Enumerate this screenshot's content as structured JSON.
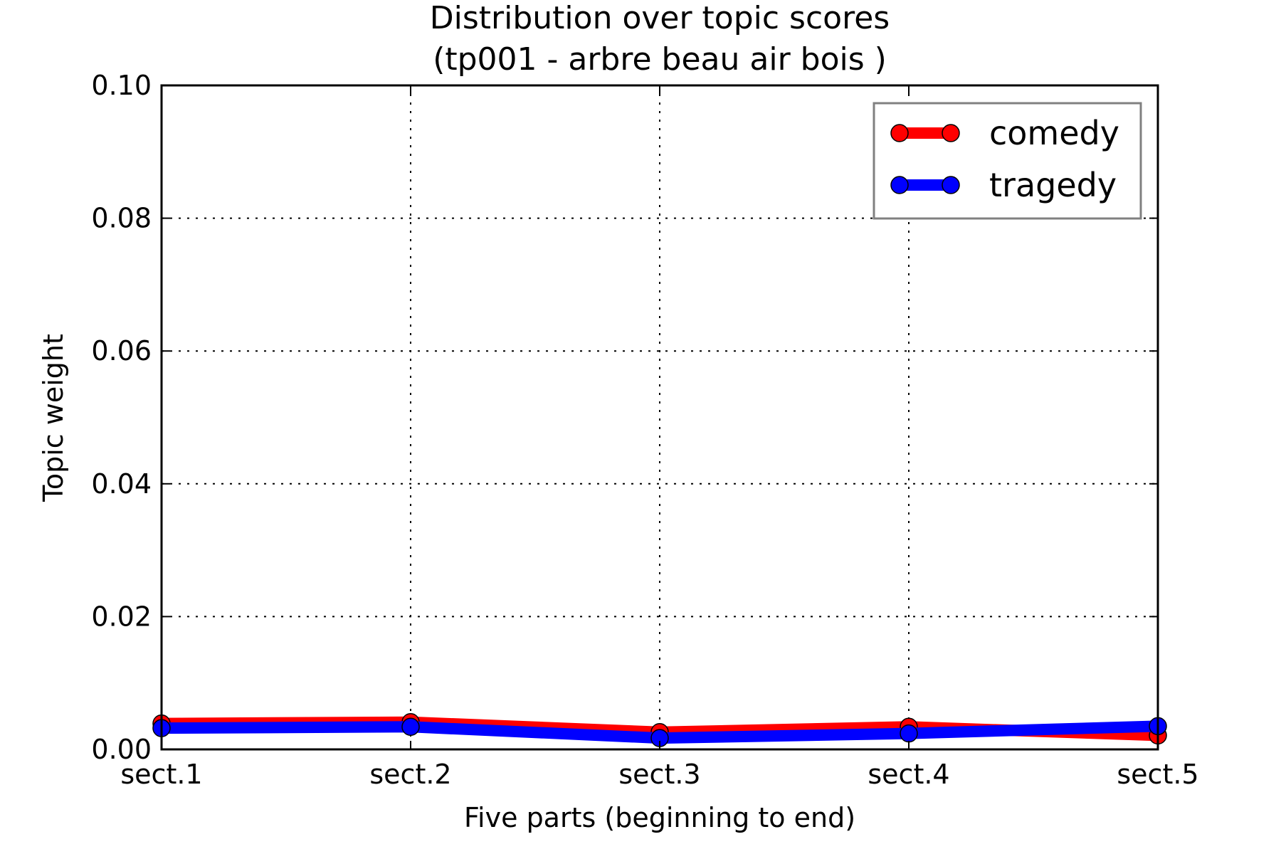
{
  "chart_data": {
    "type": "line",
    "title_line1": "Distribution over topic scores",
    "title_line2": "(tp001 - arbre beau air bois )",
    "xlabel": "Five parts (beginning to end)",
    "ylabel": "Topic weight",
    "categories": [
      "sect.1",
      "sect.2",
      "sect.3",
      "sect.4",
      "sect.5"
    ],
    "ylim": [
      0,
      0.1
    ],
    "yticks": [
      0.0,
      0.02,
      0.04,
      0.06,
      0.08,
      0.1
    ],
    "ytick_labels": [
      "0.00",
      "0.02",
      "0.04",
      "0.06",
      "0.08",
      "0.10"
    ],
    "grid": true,
    "legend_position": "top-right",
    "series": [
      {
        "name": "comedy",
        "color": "#ff0000",
        "values": [
          0.0039,
          0.0041,
          0.0026,
          0.0034,
          0.0021
        ]
      },
      {
        "name": "tragedy",
        "color": "#0000ff",
        "values": [
          0.0032,
          0.0034,
          0.0017,
          0.0024,
          0.0035
        ]
      }
    ]
  }
}
